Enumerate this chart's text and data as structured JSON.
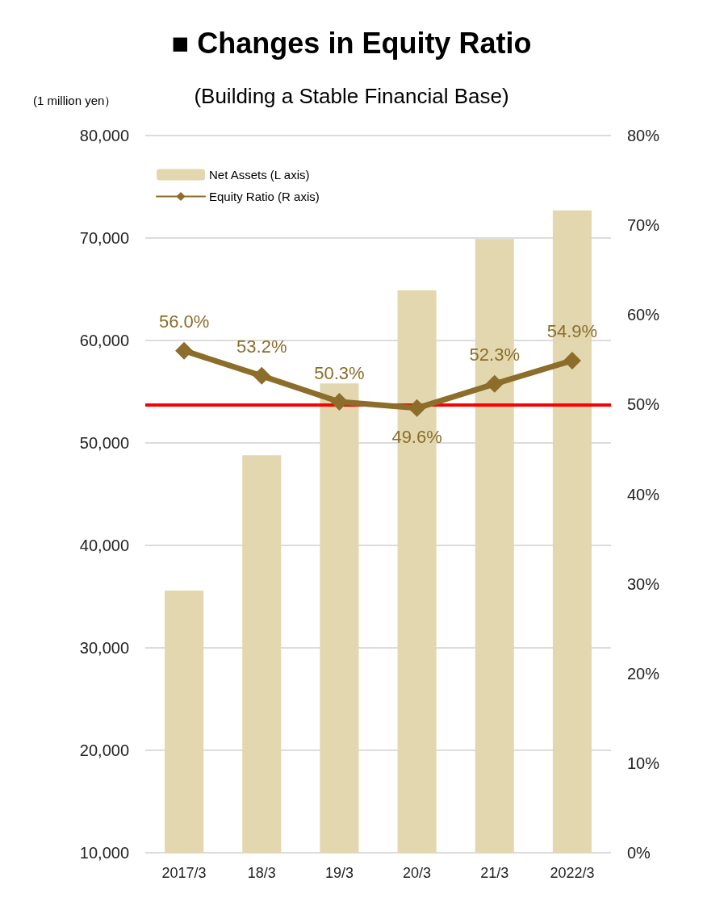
{
  "chart_data": {
    "type": "bar",
    "title": "■ Changes in Equity Ratio",
    "subtitle": "(Building a Stable Financial Base)",
    "ylabel": "(1 million yen）",
    "categories": [
      "2017/3",
      "18/3",
      "19/3",
      "20/3",
      "21/3",
      "2022/3"
    ],
    "series": [
      {
        "name": "Net Assets (L axis)",
        "color": "#e2d7ae",
        "values": [
          35600,
          48800,
          55800,
          64900,
          69900,
          72700
        ]
      },
      {
        "name": "Equity Ratio (R axis)",
        "type": "line",
        "axis": "y2",
        "color": "#8c6d2a",
        "values": [
          56.0,
          53.2,
          50.3,
          49.6,
          52.3,
          54.9
        ],
        "value_labels": [
          "56.0%",
          "53.2%",
          "50.3%",
          "49.6%",
          "52.3%",
          "54.9%"
        ]
      }
    ],
    "ylim": [
      10000,
      80000
    ],
    "yticks": [
      {
        "value": 10000,
        "label": "10,000"
      },
      {
        "value": 20000,
        "label": "20,000"
      },
      {
        "value": 30000,
        "label": "30,000"
      },
      {
        "value": 40000,
        "label": "40,000"
      },
      {
        "value": 50000,
        "label": "50,000"
      },
      {
        "value": 60000,
        "label": "60,000"
      },
      {
        "value": 70000,
        "label": "70,000"
      },
      {
        "value": 80000,
        "label": "80,000"
      }
    ],
    "y2lim": [
      0,
      80
    ],
    "y2ticks": [
      {
        "value": 0,
        "label": "0%"
      },
      {
        "value": 10,
        "label": "10%"
      },
      {
        "value": 20,
        "label": "20%"
      },
      {
        "value": 30,
        "label": "30%"
      },
      {
        "value": 40,
        "label": "40%"
      },
      {
        "value": 50,
        "label": "50%"
      },
      {
        "value": 60,
        "label": "60%"
      },
      {
        "value": 70,
        "label": "70%"
      },
      {
        "value": 80,
        "label": "80%"
      }
    ],
    "ref_lines": [
      {
        "axis": "y2",
        "value": 50,
        "color": "#ff0000"
      }
    ],
    "grid": "y",
    "legend": "top left",
    "marker": "diamond",
    "line_style": "solid"
  }
}
